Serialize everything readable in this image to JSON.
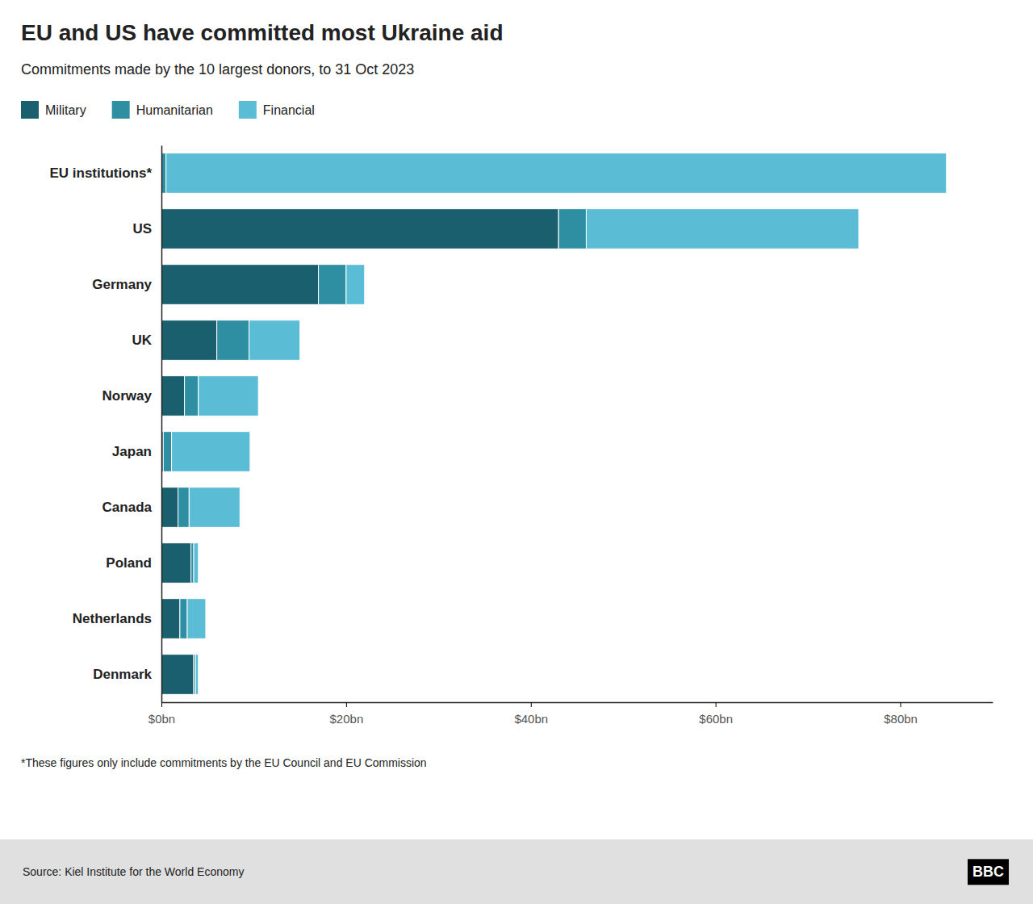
{
  "chart_data": {
    "type": "bar",
    "orientation": "horizontal",
    "stacked": true,
    "title": "EU and US have committed most Ukraine aid",
    "subtitle": "Commitments made by the 10 largest donors, to 31 Oct 2023",
    "annotations": [
      "*These figures only include commitments by the EU Council and EU Commission",
      "Source: Kiel Institute for the World Economy",
      "BBC"
    ],
    "categories": [
      "EU institutions*",
      "US",
      "Germany",
      "UK",
      "Norway",
      "Japan",
      "Canada",
      "Poland",
      "Netherlands",
      "Denmark"
    ],
    "series": [
      {
        "name": "Military",
        "color": "#1a5f6e",
        "values": [
          0.0,
          43.0,
          17.0,
          6.0,
          2.5,
          0.2,
          1.8,
          3.2,
          2.0,
          3.5
        ]
      },
      {
        "name": "Humanitarian",
        "color": "#2e8fa3",
        "values": [
          0.5,
          3.0,
          3.0,
          3.5,
          1.5,
          0.9,
          1.2,
          0.3,
          0.8,
          0.2
        ]
      },
      {
        "name": "Financial",
        "color": "#5bbcd6",
        "values": [
          84.5,
          29.5,
          2.0,
          5.5,
          6.5,
          8.5,
          5.5,
          0.5,
          2.0,
          0.3
        ]
      }
    ],
    "xlim": [
      0,
      90
    ],
    "xticks": [
      {
        "value": 0,
        "label": "$0bn"
      },
      {
        "value": 20,
        "label": "$20bn"
      },
      {
        "value": 40,
        "label": "$40bn"
      },
      {
        "value": 60,
        "label": "$60bn"
      },
      {
        "value": 80,
        "label": "$80bn"
      }
    ],
    "grid": false,
    "legend": "top"
  }
}
